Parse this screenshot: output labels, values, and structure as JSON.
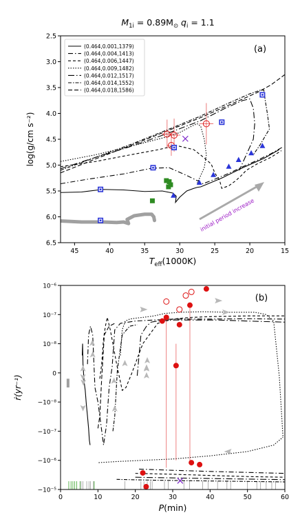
{
  "figure": {
    "title_parts": {
      "m": "M",
      "m_sub": "1i",
      "eq": " = 0.89M",
      "sun": "⊙",
      "q": "  q",
      "q_sub": "i",
      "q_val": " = 1.1"
    }
  },
  "chart_data": [
    {
      "type": "line",
      "panel_label": "(a)",
      "xlabel": {
        "main": "T",
        "sub": "eff",
        "unit": "(1000K)"
      },
      "ylabel": "log(g/cm s⁻²)",
      "xlim": [
        47,
        15
      ],
      "ylim": [
        6.5,
        2.5
      ],
      "x_ticks": [
        45,
        40,
        35,
        30,
        25,
        20,
        15
      ],
      "y_ticks": [
        2.5,
        3.0,
        3.5,
        4.0,
        4.5,
        5.0,
        5.5,
        6.0,
        6.5
      ],
      "legend_position": "top-left",
      "series": [
        {
          "name": "(0.464,0.001,1379)",
          "dash": "",
          "color": "#000000",
          "x": [
            47,
            44,
            41,
            38,
            35,
            32.5,
            31,
            30.5,
            30.6,
            30,
            29,
            28,
            27.5,
            27,
            24,
            21,
            18,
            15.8
          ],
          "y": [
            5.53,
            5.52,
            5.47,
            5.48,
            5.51,
            5.5,
            5.54,
            5.6,
            5.72,
            5.62,
            5.5,
            5.45,
            5.43,
            5.42,
            5.25,
            5.05,
            4.87,
            4.7
          ]
        },
        {
          "name": "(0.464,0.004,1413)",
          "dash": "7,3,1.5,3",
          "color": "#000000",
          "x": [
            47,
            43,
            38,
            34,
            31.5,
            29,
            27.5,
            26.7,
            25.5,
            23,
            21,
            19,
            17,
            15.3
          ],
          "y": [
            5.36,
            5.27,
            5.17,
            5.06,
            5.05,
            5.2,
            5.3,
            5.36,
            5.3,
            5.16,
            5.03,
            4.91,
            4.78,
            4.65
          ]
        },
        {
          "name": "(0.464,0.006,1447)",
          "dash": "4,3",
          "color": "#000000",
          "x": [
            47,
            42,
            37,
            33,
            30.5,
            28,
            26.5,
            25.5,
            25,
            24.3,
            24,
            23,
            22,
            21.2,
            20.5,
            19,
            17,
            15.5
          ],
          "y": [
            5.03,
            4.93,
            4.8,
            4.7,
            4.62,
            4.7,
            4.86,
            4.98,
            5.15,
            5.3,
            5.45,
            5.4,
            5.3,
            5.2,
            5.1,
            4.98,
            4.85,
            4.72
          ]
        },
        {
          "name": "(0.464,0.009,1482)",
          "dash": "1.5,2",
          "color": "#000000",
          "x": [
            47,
            42,
            36,
            32,
            30,
            28.2,
            27.5,
            27,
            26.5,
            26.2,
            26.5,
            27.5
          ],
          "y": [
            4.93,
            4.8,
            4.6,
            4.46,
            4.37,
            4.24,
            4.2,
            4.25,
            4.5,
            4.8,
            5.05,
            5.35
          ]
        },
        {
          "name": "(0.464,0.012,1517)",
          "dash": "9,3,1.5,3",
          "color": "#000000",
          "x": [
            47,
            42,
            37,
            32,
            27,
            23.5,
            21,
            20,
            19.5,
            19.3,
            19.5,
            20.5,
            21.5
          ],
          "y": [
            5.07,
            4.85,
            4.64,
            4.4,
            4.14,
            3.9,
            3.75,
            3.72,
            3.9,
            4.2,
            4.5,
            4.8,
            5.1
          ]
        },
        {
          "name": "(0.464,0.014,1552)",
          "dash": "5,2,1.5,2",
          "color": "#000000",
          "x": [
            47,
            42,
            37,
            32,
            27,
            23,
            20,
            18.5,
            18,
            17.8,
            17.5,
            17.2,
            18.5,
            19.5
          ],
          "y": [
            5.1,
            4.85,
            4.6,
            4.33,
            4.05,
            3.8,
            3.62,
            3.55,
            3.55,
            3.75,
            4.0,
            4.3,
            4.6,
            4.8
          ]
        },
        {
          "name": "(0.464,0.018,1586)",
          "dash": "6,3",
          "color": "#000000",
          "x": [
            47,
            42,
            37,
            32,
            27,
            22,
            19,
            17,
            15
          ],
          "y": [
            5.15,
            4.88,
            4.62,
            4.35,
            4.08,
            3.78,
            3.6,
            3.45,
            3.25
          ]
        }
      ],
      "grey_track": {
        "color": "#a0a0a0",
        "x": [
          47,
          44,
          41,
          39,
          38,
          37.3,
          37.5,
          36.5,
          35,
          34,
          33.7,
          33.6
        ],
        "y": [
          6.08,
          6.1,
          6.1,
          6.11,
          6.1,
          6.13,
          6.05,
          5.98,
          5.95,
          5.95,
          6.0,
          6.07
        ]
      },
      "blue_squares": {
        "color": "#2a35d8",
        "x": [
          41.3,
          41.3,
          33.8,
          30.8,
          24,
          18.2
        ],
        "y": [
          6.07,
          5.47,
          5.05,
          4.66,
          4.17,
          3.64
        ]
      },
      "blue_triangles": {
        "color": "#2a35d8",
        "x": [
          30.9,
          27.2,
          25.2,
          23,
          21.6,
          19.8,
          18.2
        ],
        "y": [
          5.59,
          5.34,
          5.19,
          5.03,
          4.9,
          4.77,
          4.63
        ]
      },
      "green_squares": {
        "color": "#2e8b22",
        "x": [
          31.9,
          31.5,
          31.3,
          31.6,
          33.9
        ],
        "y": [
          5.3,
          5.32,
          5.38,
          5.42,
          5.69
        ]
      },
      "red_circles": {
        "color": "#dd1111",
        "x": [
          31.8,
          30.8,
          26.2,
          31.2
        ],
        "y": [
          4.4,
          4.42,
          4.2,
          4.62
        ],
        "err_x": [
          0.8,
          0.9,
          1.0,
          0.6
        ],
        "err_y": [
          0.28,
          0.32,
          0.4,
          0.2
        ]
      },
      "purple_cross": {
        "color": "#7a22c8",
        "x": [
          29.2
        ],
        "y": [
          4.49
        ]
      },
      "annotation": {
        "text": "initial period increase",
        "color": "#9a16c4"
      }
    },
    {
      "type": "line",
      "panel_label": "(b)",
      "xlabel": {
        "main": "P",
        "unit": "(min)"
      },
      "ylabel": "ṙ(yr⁻¹)",
      "xlim": [
        0,
        60
      ],
      "yscale": "symlog",
      "linthresh": 1e-08,
      "ylim": [
        -1e-05,
        1e-06
      ],
      "x_ticks": [
        0,
        10,
        20,
        30,
        40,
        50,
        60
      ],
      "y_ticks": [
        {
          "value": 1e-06,
          "label": "10⁻⁶"
        },
        {
          "value": 1e-07,
          "label": "10⁻⁷"
        },
        {
          "value": 1e-08,
          "label": "10⁻⁸"
        },
        {
          "value": 0,
          "label": "0"
        },
        {
          "value": -1e-08,
          "label": "−10⁻⁸"
        },
        {
          "value": -1e-07,
          "label": "−10⁻⁷"
        },
        {
          "value": -1e-06,
          "label": "−10⁻⁶"
        },
        {
          "value": -1e-05,
          "label": "−10⁻⁵"
        }
      ],
      "series": [
        {
          "name": "(0.464,0.001,1379)",
          "dash": "",
          "color": "#000000",
          "x": [
            5.8,
            5.9,
            6.0,
            6.3,
            6.6,
            6.9,
            7.2,
            7.5,
            7.7,
            7.9
          ],
          "y": [
            6e-09,
            1e-08,
            3e-09,
            -3e-09,
            -6e-09,
            -1.2e-08,
            -3e-08,
            -8e-08,
            -2e-07,
            -3e-07
          ]
        },
        {
          "name": "(0.464,0.004,1413)",
          "dash": "7,3,1.5,3",
          "color": "#000000",
          "x": [
            7.2,
            7.5,
            8.0,
            8.6,
            9.2,
            10.0,
            10.8,
            11.5,
            12.3,
            13.0,
            13.8,
            14.5,
            16,
            20,
            25,
            30,
            40,
            50,
            60
          ],
          "y": [
            3e-09,
            2e-08,
            4e-08,
            2e-08,
            -5e-09,
            -1e-08,
            -6e-08,
            -3e-07,
            -6e-08,
            -5e-09,
            2e-09,
            3e-08,
            5e-08,
            6e-08,
            6.5e-08,
            7e-08,
            7e-08,
            7.2e-08,
            7e-08
          ]
        },
        {
          "name": "(0.464,0.006,1447)",
          "dash": "4,3",
          "color": "#000000",
          "x": [
            10.5,
            11.0,
            11.5,
            12.0,
            12.5,
            13.3,
            14.0,
            15.0,
            16.5,
            17.5,
            19,
            22,
            26,
            30,
            35,
            40,
            50,
            60
          ],
          "y": [
            -2e-09,
            3e-09,
            1.5e-08,
            4e-08,
            8e-08,
            3e-08,
            1e-08,
            3e-09,
            -6e-09,
            -5e-09,
            -3e-10,
            1e-08,
            5e-08,
            7e-08,
            8e-08,
            8.5e-08,
            9e-08,
            9e-08
          ]
        },
        {
          "name": "(0.464,0.009,1482)",
          "dash": "1.5,2",
          "color": "#000000",
          "x": [
            16.0,
            16.5,
            17.3,
            18.5,
            20,
            22,
            25,
            28,
            32,
            38,
            45,
            52,
            55,
            57,
            58.5,
            59.5
          ],
          "y": [
            6e-09,
            3e-08,
            6e-08,
            7e-08,
            7.5e-08,
            8e-08,
            9e-08,
            1.1e-07,
            1.2e-07,
            1.25e-07,
            1.2e-07,
            1.2e-07,
            1e-07,
            6e-08,
            -1e-09,
            -1.6e-07
          ]
        },
        {
          "name": "(0.464,0.012,1517)",
          "dash": "9,3,1.5,3",
          "color": "#000000",
          "x": [
            20.5,
            21.5,
            23,
            24.2,
            26,
            30,
            35,
            42,
            50,
            60
          ],
          "y": [
            -1e-09,
            2e-08,
            4e-08,
            5.5e-08,
            6e-08,
            6.5e-08,
            6.5e-08,
            6.5e-08,
            6e-08,
            5.5e-08
          ]
        },
        {
          "name": "(0.464,0.014,1552)",
          "dash": "5,2,1.5,2",
          "color": "#000000",
          "x": [
            14.0,
            14.5,
            15.2,
            16.5,
            18.5,
            20.5
          ],
          "y": [
            -1e-07,
            -3e-08,
            1e-09,
            2e-08,
            4e-08,
            4.5e-08
          ]
        },
        {
          "name": "(0.464,0.018,1586)",
          "dash": "6,3",
          "color": "#000000",
          "x": [
            10.0,
            10.5,
            11.0,
            11.7,
            13,
            14.5
          ],
          "y": [
            -8e-08,
            -3e-08,
            -2e-09,
            2e-08,
            4e-08,
            5e-08
          ]
        },
        {
          "name": "lower-dotted",
          "dash": "1.5,2",
          "color": "#000000",
          "x": [
            10.2,
            15,
            22,
            30,
            40,
            50,
            57,
            59.5
          ],
          "y": [
            -1.2e-06,
            -1.1e-06,
            -1e-06,
            -9e-07,
            -7e-07,
            -5e-07,
            -3e-07,
            -1.6e-07
          ]
        },
        {
          "name": "lower-dashdot",
          "dash": "7,3,1.5,3",
          "color": "#000000",
          "x": [
            21,
            30,
            40,
            50,
            60
          ],
          "y": [
            -2e-06,
            -2.2e-06,
            -2.4e-06,
            -2.6e-06,
            -2.8e-06
          ]
        },
        {
          "name": "lower-dash",
          "dash": "4,3",
          "color": "#000000",
          "x": [
            20,
            30,
            40,
            50,
            60
          ],
          "y": [
            -2.8e-06,
            -3e-06,
            -3.3e-06,
            -3.6e-06,
            -3.8e-06
          ]
        },
        {
          "name": "lower-dashdot2",
          "dash": "9,3,1.5,3",
          "color": "#000000",
          "x": [
            20,
            30,
            40,
            50,
            60
          ],
          "y": [
            -3.8e-06,
            -4e-06,
            -4.2e-06,
            -4.4e-06,
            -4.6e-06
          ]
        },
        {
          "name": "lower-dense",
          "dash": "5,2,1.5,2",
          "color": "#000000",
          "x": [
            15,
            25,
            35,
            45,
            60
          ],
          "y": [
            -4.5e-06,
            -4.8e-06,
            -5e-06,
            -5.2e-06,
            -5.5e-06
          ]
        }
      ],
      "grey_segment": {
        "color": "#a0a0a0",
        "x": [
          2.0,
          2.0
        ],
        "y": [
          -2e-09,
          -5e-09
        ]
      },
      "red_filled": {
        "color": "#dd1111",
        "x": [
          27.2,
          28.3,
          30.9,
          31.8,
          34.6,
          35.0,
          37.2,
          39.0,
          22.0,
          22.9
        ],
        "y": [
          6e-08,
          8e-08,
          2.5e-09,
          4.5e-08,
          2.1e-07,
          -1.2e-06,
          -1.4e-06,
          7.6e-07,
          -2.7e-06,
          -8e-06
        ],
        "err_low": [
          null,
          1e-07,
          1e-08,
          null,
          null,
          null,
          null,
          null,
          null,
          null
        ],
        "err_high": [
          null,
          -1.8e-06,
          -1e-06,
          null,
          -1.4e-06,
          null,
          null,
          null,
          null,
          null
        ]
      },
      "red_open": {
        "color": "#dd1111",
        "x": [
          28.3,
          31.8,
          33.5,
          35.0
        ],
        "y": [
          2.8e-07,
          1.5e-07,
          4.5e-07,
          6e-07
        ]
      },
      "purple_cross": {
        "color": "#7a22c8",
        "x": [
          32.0
        ],
        "y": [
          -5e-06
        ]
      },
      "arrows": {
        "color": "#b8b8b8",
        "items": [
          {
            "x": 6.0,
            "y": 1.2e-09,
            "dir": "up"
          },
          {
            "x": 6.0,
            "y": -1.2e-09,
            "dir": "down"
          },
          {
            "x": 6.1,
            "y": -3e-09,
            "dir": "down"
          },
          {
            "x": 6.0,
            "y": -1.5e-08,
            "dir": "down"
          },
          {
            "x": 8.6,
            "y": 6e-09,
            "dir": "up"
          },
          {
            "x": 8.5,
            "y": 1e-08,
            "dir": "up"
          },
          {
            "x": 14.3,
            "y": -3e-09,
            "dir": "up"
          },
          {
            "x": 14.5,
            "y": -1.8e-08,
            "dir": "up"
          },
          {
            "x": 17.2,
            "y": 3e-09,
            "dir": "up"
          },
          {
            "x": 23.0,
            "y": 1.2e-09,
            "dir": "up"
          },
          {
            "x": 23.0,
            "y": -1.2e-09,
            "dir": "up"
          },
          {
            "x": 23.0,
            "y": 1.5e-09,
            "dir": "up"
          },
          {
            "x": 23.2,
            "y": 4e-09,
            "dir": "up"
          },
          {
            "x": 22.0,
            "y": 1.5e-07,
            "dir": "right"
          },
          {
            "x": 42.0,
            "y": 3e-07,
            "dir": "right"
          },
          {
            "x": 44.0,
            "y": 1.2e-07,
            "dir": "right"
          },
          {
            "x": 45.0,
            "y": -5e-07,
            "dir": "left"
          }
        ]
      },
      "ticks_rug": {
        "green_x": [
          2.2,
          2.8,
          3.3,
          3.8,
          4.3,
          5.2,
          9.0
        ],
        "grey_x": [
          5.5,
          6.0,
          7.0,
          7.6,
          8.0,
          8.8,
          17.2,
          21.5,
          22.3,
          23.2,
          24.0,
          24.5,
          27.8,
          28.8,
          33.0,
          34.5,
          38.0,
          39.5,
          42.0,
          44.5,
          45.5,
          50.0,
          52.5,
          53.5,
          55.0,
          56.5,
          57.5
        ]
      }
    }
  ]
}
